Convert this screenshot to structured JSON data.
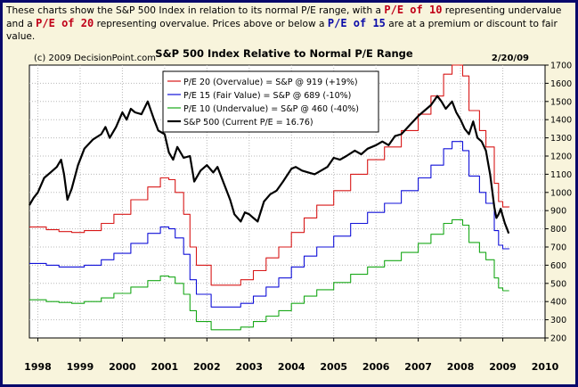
{
  "intro": {
    "t1": "These charts show the S&P 500 Index in relation to its normal P/E range, with a ",
    "h1": "P/E of 10",
    "t2": " representing undervalue and a ",
    "h2": "P/E of 20",
    "t3": " representing overvalue. Prices above or below a ",
    "h3": "P/E of 15",
    "t4": " are at a premium or discount to fair value."
  },
  "colors": {
    "frame": "#08086b",
    "panel": "#f8f4dc",
    "red": "#d81818",
    "blue": "#1010d8",
    "green": "#18a818",
    "black": "#000000"
  },
  "chart_data": {
    "type": "line",
    "title": "S&P 500 Index Relative to Normal P/E Range",
    "copyright": "(c) 2009 DecisionPoint.com",
    "date": "2/20/09",
    "y_ticks": [
      "200",
      "300",
      "400",
      "500",
      "600",
      "700",
      "800",
      "900",
      "1000",
      "1100",
      "1200",
      "1300",
      "1400",
      "1500",
      "1600",
      "1700"
    ],
    "x_ticks": [
      "1998",
      "1999",
      "2000",
      "2001",
      "2002",
      "2003",
      "2004",
      "2005",
      "2006",
      "2007",
      "2008",
      "2009",
      "2010"
    ],
    "ylim": [
      200,
      1700
    ],
    "xlim": [
      1997.8,
      2010.0
    ],
    "grid": true,
    "legend_position": "top-left",
    "series": [
      {
        "name": "P/E 20 (Overvalue) = S&P @ 919 (+19%)",
        "color": "red",
        "step": true,
        "x": [
          1997.8,
          1998.2,
          1998.5,
          1998.8,
          1999.1,
          1999.5,
          1999.8,
          2000.2,
          2000.6,
          2000.9,
          2001.1,
          2001.25,
          2001.45,
          2001.6,
          2001.75,
          2002.1,
          2002.5,
          2002.8,
          2003.1,
          2003.4,
          2003.7,
          2004.0,
          2004.3,
          2004.6,
          2005.0,
          2005.4,
          2005.8,
          2006.2,
          2006.6,
          2007.0,
          2007.3,
          2007.6,
          2007.8,
          2008.05,
          2008.2,
          2008.45,
          2008.6,
          2008.8,
          2008.9,
          2009.0,
          2009.15
        ],
        "values": [
          810,
          795,
          785,
          780,
          790,
          830,
          880,
          960,
          1030,
          1080,
          1070,
          1000,
          880,
          700,
          600,
          490,
          490,
          520,
          570,
          640,
          700,
          780,
          860,
          930,
          1010,
          1100,
          1180,
          1250,
          1340,
          1430,
          1530,
          1650,
          1700,
          1640,
          1450,
          1340,
          1250,
          1050,
          950,
          920,
          919
        ]
      },
      {
        "name": "P/E 15 (Fair Value) = S&P @ 689 (-10%)",
        "color": "blue",
        "step": true,
        "x": [
          1997.8,
          1998.2,
          1998.5,
          1998.8,
          1999.1,
          1999.5,
          1999.8,
          2000.2,
          2000.6,
          2000.9,
          2001.1,
          2001.25,
          2001.45,
          2001.6,
          2001.75,
          2002.1,
          2002.5,
          2002.8,
          2003.1,
          2003.4,
          2003.7,
          2004.0,
          2004.3,
          2004.6,
          2005.0,
          2005.4,
          2005.8,
          2006.2,
          2006.6,
          2007.0,
          2007.3,
          2007.6,
          2007.8,
          2008.05,
          2008.2,
          2008.45,
          2008.6,
          2008.8,
          2008.9,
          2009.0,
          2009.15
        ],
        "values": [
          610,
          600,
          590,
          590,
          600,
          630,
          665,
          720,
          775,
          810,
          800,
          750,
          660,
          520,
          440,
          370,
          370,
          390,
          430,
          480,
          530,
          590,
          650,
          700,
          760,
          830,
          890,
          940,
          1010,
          1080,
          1150,
          1240,
          1280,
          1230,
          1090,
          1000,
          940,
          790,
          710,
          690,
          689
        ]
      },
      {
        "name": "P/E 10 (Undervalue) = S&P @ 460 (-40%)",
        "color": "green",
        "step": true,
        "x": [
          1997.8,
          1998.2,
          1998.5,
          1998.8,
          1999.1,
          1999.5,
          1999.8,
          2000.2,
          2000.6,
          2000.9,
          2001.1,
          2001.25,
          2001.45,
          2001.6,
          2001.75,
          2002.1,
          2002.5,
          2002.8,
          2003.1,
          2003.4,
          2003.7,
          2004.0,
          2004.3,
          2004.6,
          2005.0,
          2005.4,
          2005.8,
          2006.2,
          2006.6,
          2007.0,
          2007.3,
          2007.6,
          2007.8,
          2008.05,
          2008.2,
          2008.45,
          2008.6,
          2008.8,
          2008.9,
          2009.0,
          2009.15
        ],
        "values": [
          410,
          400,
          395,
          390,
          400,
          420,
          445,
          480,
          515,
          540,
          535,
          500,
          440,
          350,
          290,
          245,
          245,
          260,
          290,
          320,
          350,
          390,
          430,
          465,
          505,
          550,
          590,
          625,
          670,
          720,
          770,
          830,
          850,
          820,
          725,
          670,
          630,
          530,
          475,
          460,
          460
        ]
      },
      {
        "name": "S&P 500 (Current P/E = 16.76)",
        "color": "black",
        "step": false,
        "x": [
          1997.8,
          1997.9,
          1998.0,
          1998.15,
          1998.3,
          1998.45,
          1998.55,
          1998.62,
          1998.7,
          1998.8,
          1998.95,
          1999.1,
          1999.3,
          1999.5,
          1999.6,
          1999.7,
          1999.85,
          2000.0,
          2000.1,
          2000.2,
          2000.3,
          2000.45,
          2000.6,
          2000.75,
          2000.85,
          2001.0,
          2001.1,
          2001.2,
          2001.3,
          2001.45,
          2001.6,
          2001.7,
          2001.85,
          2002.0,
          2002.15,
          2002.25,
          2002.4,
          2002.55,
          2002.65,
          2002.8,
          2002.9,
          2003.0,
          2003.1,
          2003.2,
          2003.35,
          2003.5,
          2003.65,
          2003.8,
          2004.0,
          2004.1,
          2004.25,
          2004.4,
          2004.55,
          2004.7,
          2004.85,
          2005.0,
          2005.15,
          2005.3,
          2005.5,
          2005.65,
          2005.8,
          2006.0,
          2006.15,
          2006.3,
          2006.45,
          2006.6,
          2006.8,
          2007.0,
          2007.15,
          2007.3,
          2007.45,
          2007.55,
          2007.65,
          2007.8,
          2007.9,
          2008.0,
          2008.1,
          2008.2,
          2008.3,
          2008.4,
          2008.5,
          2008.6,
          2008.7,
          2008.75,
          2008.8,
          2008.85,
          2008.9,
          2008.95,
          2009.0,
          2009.05,
          2009.1,
          2009.14
        ],
        "values": [
          930,
          970,
          1000,
          1080,
          1110,
          1140,
          1180,
          1100,
          960,
          1020,
          1150,
          1240,
          1290,
          1320,
          1360,
          1300,
          1360,
          1440,
          1400,
          1460,
          1440,
          1430,
          1500,
          1400,
          1340,
          1320,
          1220,
          1180,
          1250,
          1190,
          1200,
          1060,
          1120,
          1150,
          1110,
          1140,
          1050,
          960,
          880,
          840,
          890,
          880,
          860,
          840,
          950,
          990,
          1010,
          1060,
          1130,
          1140,
          1120,
          1110,
          1100,
          1120,
          1140,
          1190,
          1180,
          1200,
          1230,
          1210,
          1240,
          1260,
          1280,
          1260,
          1310,
          1320,
          1370,
          1420,
          1450,
          1480,
          1530,
          1500,
          1460,
          1500,
          1440,
          1400,
          1350,
          1320,
          1390,
          1300,
          1280,
          1230,
          1100,
          1010,
          920,
          860,
          880,
          910,
          870,
          830,
          800,
          775
        ]
      }
    ]
  }
}
